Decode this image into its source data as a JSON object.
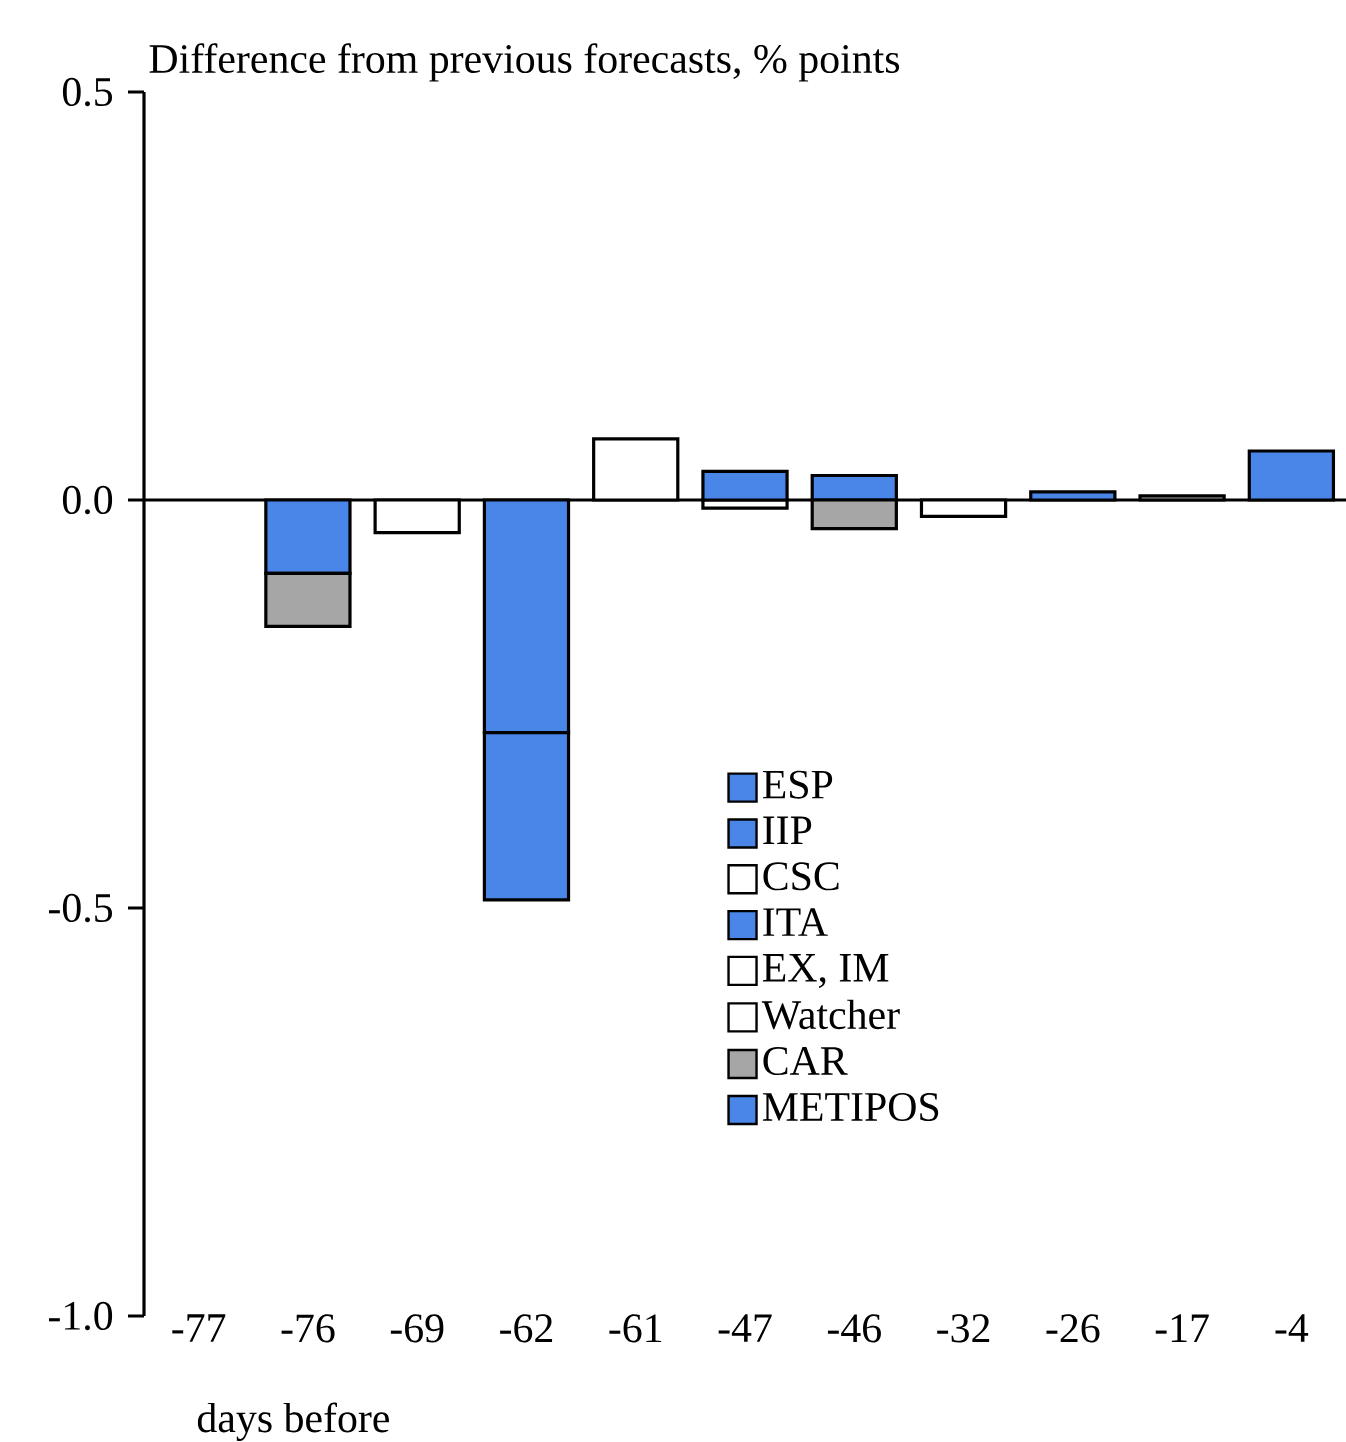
{
  "chart_data": {
    "type": "bar",
    "stacked": true,
    "title": "Difference from previous forecasts, % points",
    "xlabel": "days before",
    "categories": [
      "-77",
      "-76",
      "-69",
      "-62",
      "-61",
      "-47",
      "-46",
      "-32",
      "-26",
      "-17",
      "-4"
    ],
    "series": [
      {
        "color": "#4a86e8",
        "values": [
          null,
          -0.09,
          null,
          null,
          null,
          null,
          0.03,
          null,
          null,
          null,
          null
        ]
      },
      {
        "name": "METIPOS",
        "color": "#4a86e8",
        "values": [
          null,
          null,
          null,
          null,
          null,
          null,
          null,
          null,
          0.01,
          null,
          null
        ]
      },
      {
        "name": "CAR",
        "color": "#a6a6a6",
        "values": [
          null,
          -0.065,
          null,
          null,
          null,
          null,
          -0.035,
          null,
          null,
          0.005,
          null
        ]
      },
      {
        "name": "Watcher",
        "color": "#ffffff",
        "values": [
          null,
          null,
          -0.04,
          null,
          null,
          null,
          null,
          -0.02,
          null,
          null,
          null
        ]
      },
      {
        "name": "EX, IM",
        "color": "#ffffff",
        "values": [
          null,
          null,
          null,
          null,
          0.075,
          null,
          null,
          null,
          null,
          null,
          null
        ]
      },
      {
        "name": "ITA",
        "color": "#4a86e8",
        "values": [
          null,
          null,
          null,
          -0.285,
          null,
          null,
          null,
          null,
          null,
          null,
          null
        ]
      },
      {
        "name": "CSC",
        "color": "#ffffff",
        "values": [
          null,
          null,
          null,
          null,
          null,
          -0.01,
          null,
          null,
          null,
          null,
          null
        ]
      },
      {
        "name": "IIP",
        "color": "#4a86e8",
        "values": [
          null,
          null,
          null,
          null,
          null,
          0.035,
          null,
          null,
          null,
          null,
          null
        ]
      },
      {
        "name": "ESP",
        "color": "#4a86e8",
        "values": [
          null,
          null,
          null,
          -0.205,
          null,
          null,
          null,
          null,
          null,
          null,
          0.06
        ]
      }
    ],
    "ylim": [
      -1.0,
      0.5
    ],
    "yticks": [
      {
        "value": -1.0,
        "label": "-1.0"
      },
      -0.5,
      {
        "value": 0,
        "label": "0.0"
      },
      0.5
    ],
    "legend": "bottom"
  }
}
